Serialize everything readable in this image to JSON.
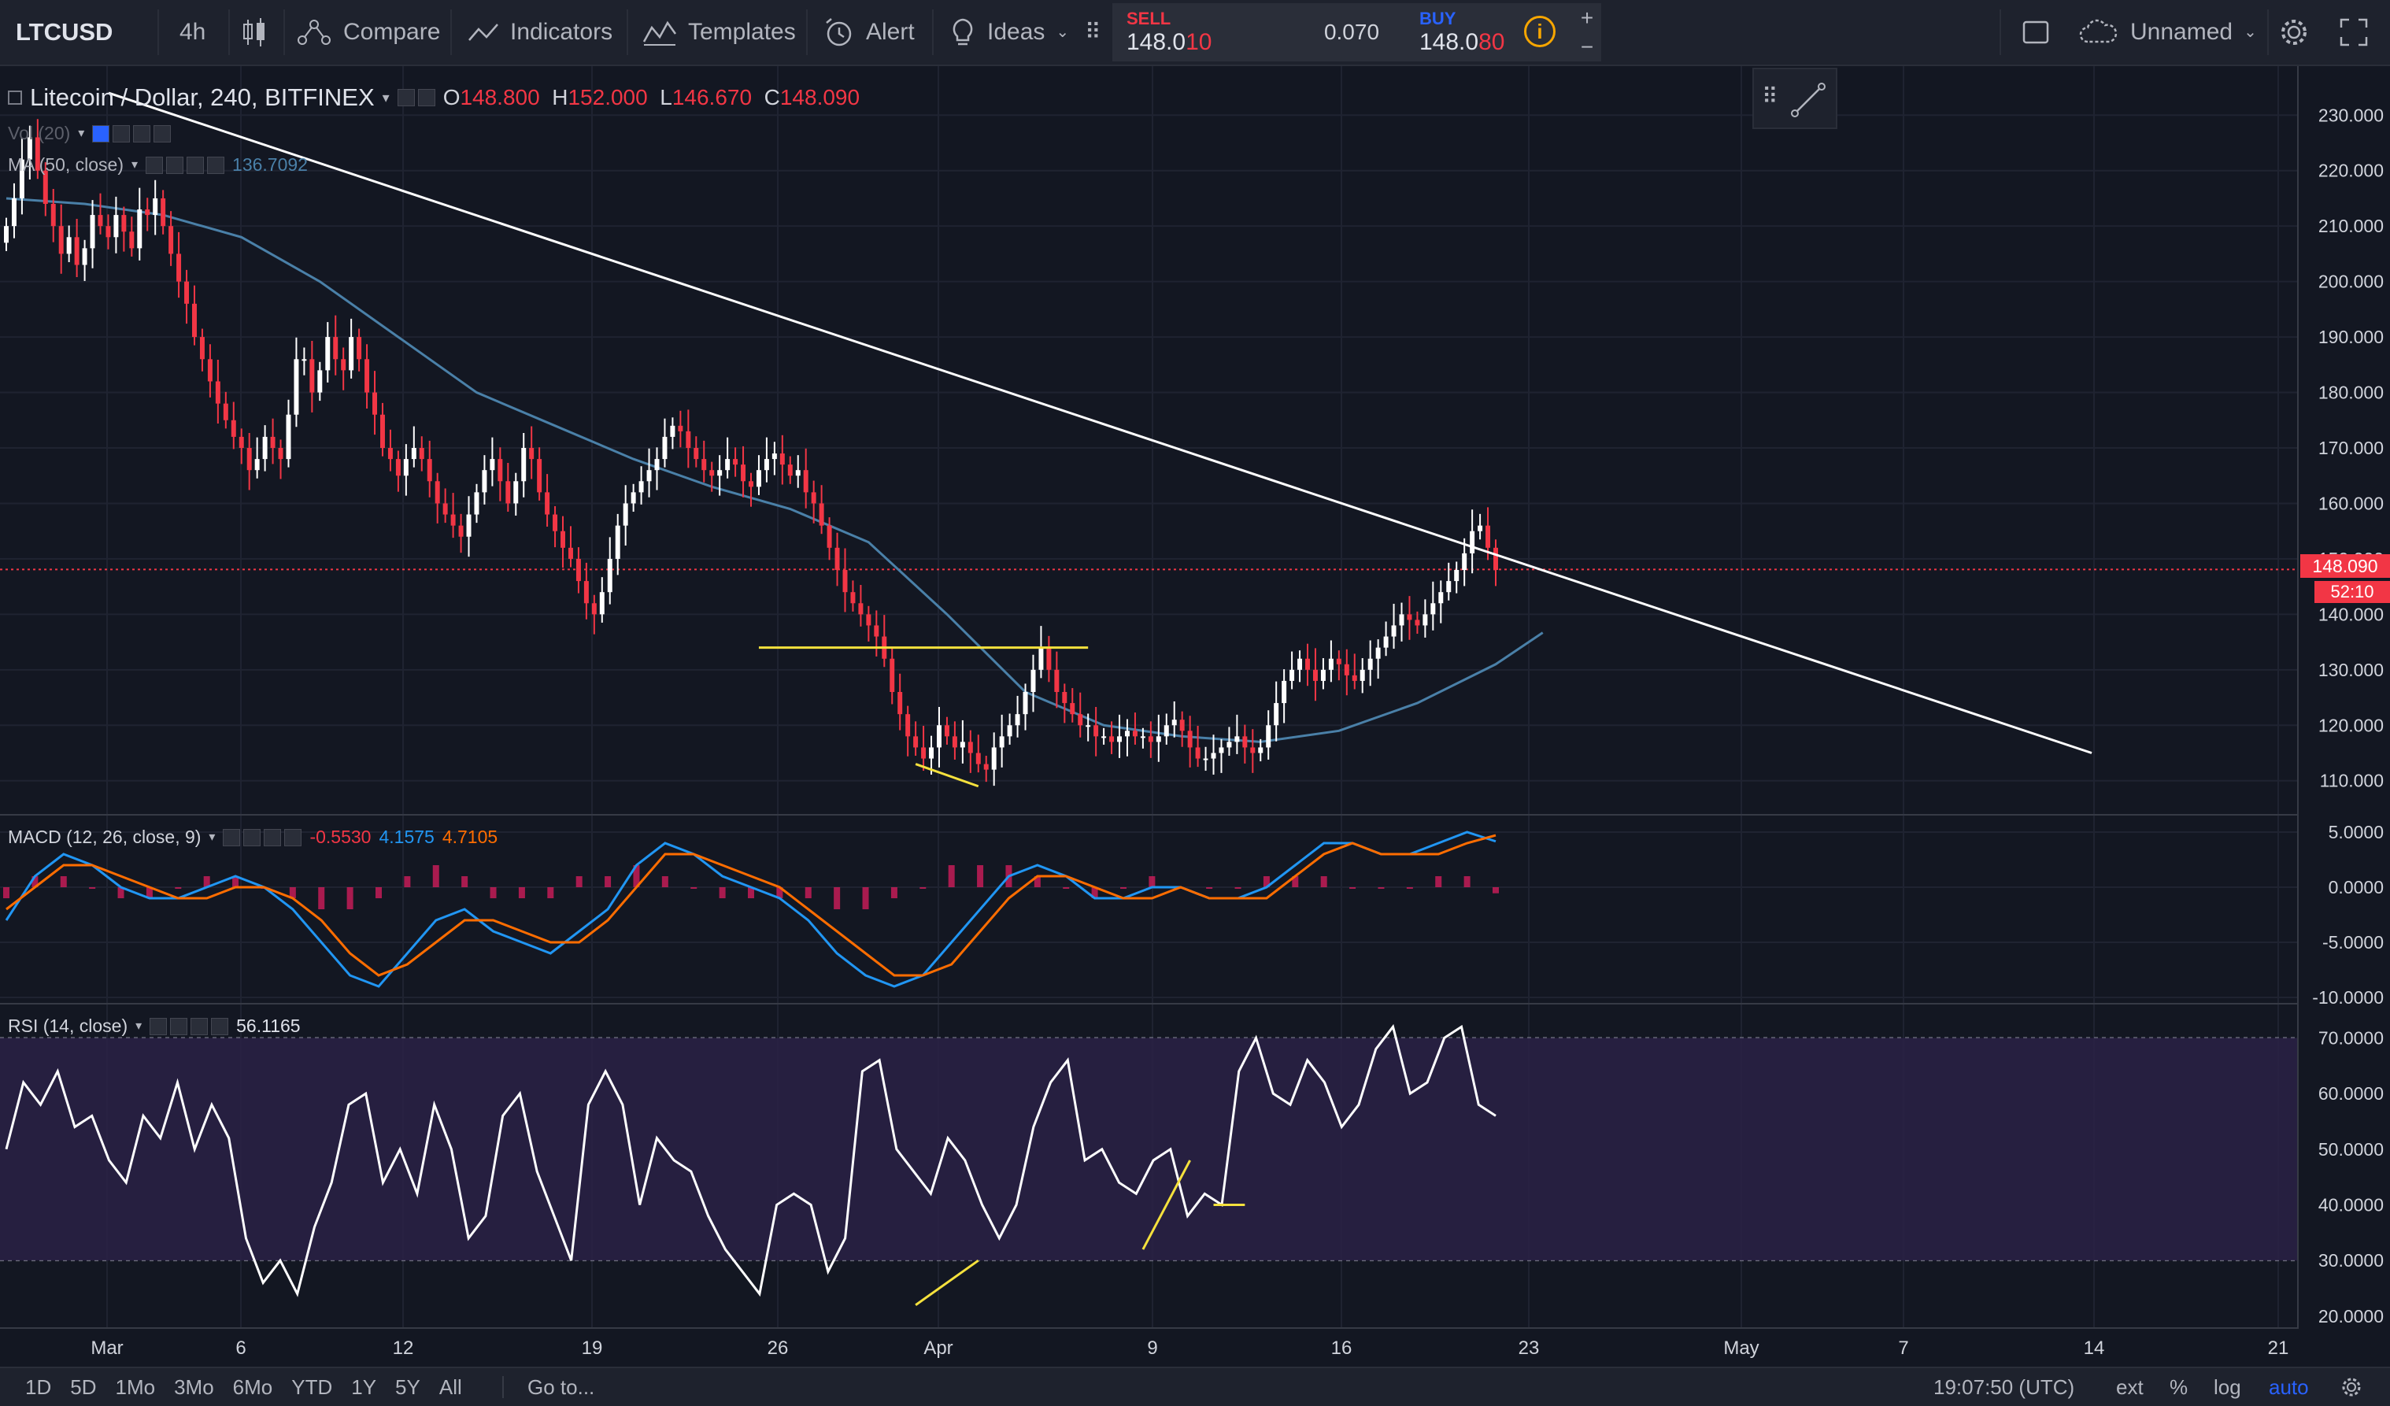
{
  "toolbar": {
    "symbol": "LTCUSD",
    "interval": "4h",
    "compare_label": "Compare",
    "indicators_label": "Indicators",
    "templates_label": "Templates",
    "alert_label": "Alert",
    "ideas_label": "Ideas",
    "sell_label": "SELL",
    "sell_price_main": "148.0",
    "sell_price_frac": "10",
    "spread": "0.070",
    "buy_label": "BUY",
    "buy_price_main": "148.0",
    "buy_price_frac": "80",
    "plus_label": "+",
    "minus_label": "−",
    "layout_name": "Unnamed"
  },
  "legend": {
    "title": "Litecoin / Dollar, 240, BITFINEX",
    "o_key": "O",
    "o_val": "148.800",
    "h_key": "H",
    "h_val": "152.000",
    "l_key": "L",
    "l_val": "146.670",
    "c_key": "C",
    "c_val": "148.090",
    "vol_label": "Vol (20)",
    "ma_label": "MA (50, close)",
    "ma_value": "136.7092",
    "macd_label": "MACD (12, 26, close, 9)",
    "macd_hist": "-0.5530",
    "macd_line": "4.1575",
    "macd_signal": "4.7105",
    "rsi_label": "RSI (14, close)",
    "rsi_value": "56.1165"
  },
  "price_marker": {
    "value": "148.090",
    "countdown": "52:10"
  },
  "bottom_bar": {
    "ranges": [
      "1D",
      "5D",
      "1Mo",
      "3Mo",
      "6Mo",
      "YTD",
      "1Y",
      "5Y",
      "All"
    ],
    "goto_label": "Go to...",
    "clock": "19:07:50 (UTC)",
    "ext_label": "ext",
    "percent_label": "%",
    "log_label": "log",
    "auto_label": "auto"
  },
  "colors": {
    "background": "#131722",
    "up_candle": "#ffffff",
    "down_candle": "#f23645",
    "ma_line": "#4a80a8",
    "macd_line": "#2196f3",
    "signal_line": "#ff6d00",
    "rsi_line": "#ffffff",
    "trend_line": "#ffffff",
    "annotation_line": "#f5e13d",
    "rsi_band": "#2a2145"
  },
  "chart_data": [
    {
      "type": "candlestick",
      "title": "Litecoin / Dollar, 240, BITFINEX",
      "x_ticks": [
        "Mar",
        "6",
        "12",
        "19",
        "26",
        "Apr",
        "9",
        "16",
        "23",
        "May",
        "7",
        "14",
        "21"
      ],
      "y_ticks": [
        "110.000",
        "120.000",
        "130.000",
        "140.000",
        "150.000",
        "160.000",
        "170.000",
        "180.000",
        "190.000",
        "200.000",
        "210.000",
        "220.000",
        "230.000"
      ],
      "ylim": [
        104,
        236
      ],
      "close_series": [
        210,
        215,
        222,
        226,
        220,
        214,
        210,
        205,
        208,
        203,
        206,
        212,
        210,
        208,
        212,
        209,
        206,
        213,
        212,
        215,
        210,
        205,
        200,
        196,
        190,
        186,
        182,
        178,
        175,
        172,
        170,
        166,
        168,
        172,
        170,
        168,
        176,
        186,
        186,
        180,
        184,
        190,
        186,
        184,
        190,
        186,
        180,
        176,
        170,
        168,
        165,
        168,
        170,
        168,
        164,
        160,
        158,
        156,
        154,
        158,
        162,
        166,
        168,
        164,
        160,
        164,
        170,
        168,
        162,
        158,
        155,
        152,
        150,
        146,
        142,
        140,
        144,
        150,
        156,
        160,
        162,
        164,
        166,
        168,
        172,
        174,
        173,
        170,
        168,
        166,
        165,
        166,
        168,
        167,
        164,
        163,
        166,
        168,
        169,
        167,
        165,
        166,
        162,
        160,
        156,
        152,
        148,
        144,
        142,
        140,
        138,
        136,
        132,
        126,
        122,
        118,
        116,
        114,
        116,
        120,
        118,
        116,
        117,
        115,
        113,
        112,
        116,
        118,
        120,
        122,
        126,
        130,
        134,
        130,
        126,
        124,
        122,
        120,
        120,
        118,
        118,
        117,
        118,
        119,
        118,
        118,
        117,
        118,
        120,
        121,
        119,
        116,
        114,
        114,
        115,
        116,
        117,
        118,
        116,
        115,
        116,
        120,
        124,
        128,
        130,
        132,
        130,
        128,
        130,
        132,
        131,
        129,
        128,
        130,
        132,
        134,
        136,
        138,
        140,
        139,
        138,
        140,
        142,
        144,
        146,
        148,
        151,
        155,
        156,
        152,
        148
      ],
      "ma50": [
        {
          "x": 0,
          "y": 215
        },
        {
          "x": 10,
          "y": 214
        },
        {
          "x": 20,
          "y": 212
        },
        {
          "x": 30,
          "y": 208
        },
        {
          "x": 40,
          "y": 200
        },
        {
          "x": 50,
          "y": 190
        },
        {
          "x": 60,
          "y": 180
        },
        {
          "x": 70,
          "y": 174
        },
        {
          "x": 80,
          "y": 168
        },
        {
          "x": 90,
          "y": 163
        },
        {
          "x": 100,
          "y": 159
        },
        {
          "x": 110,
          "y": 153
        },
        {
          "x": 120,
          "y": 140
        },
        {
          "x": 130,
          "y": 126
        },
        {
          "x": 140,
          "y": 120
        },
        {
          "x": 150,
          "y": 118
        },
        {
          "x": 160,
          "y": 117
        },
        {
          "x": 170,
          "y": 119
        },
        {
          "x": 180,
          "y": 124
        },
        {
          "x": 190,
          "y": 131
        },
        {
          "x": 196,
          "y": 136.7
        }
      ],
      "annotations": {
        "trend_line": {
          "x": [
            0,
            260
          ],
          "y": [
            234,
            115
          ]
        },
        "support_line": {
          "x": [
            96,
            138
          ],
          "y": [
            134,
            134
          ]
        },
        "divergence_line": {
          "x": [
            116,
            124
          ],
          "y": [
            113,
            109
          ]
        }
      },
      "last_price": 148.09,
      "ma_last": 136.7092
    },
    {
      "type": "line",
      "title": "MACD (12, 26, close, 9)",
      "y_ticks": [
        "5.0000",
        "0.0000",
        "-5.0000",
        "-10.0000"
      ],
      "ylim": [
        -10.5,
        6.5
      ],
      "series": [
        {
          "name": "MACD",
          "values": [
            -3,
            1,
            3,
            2,
            0,
            -1,
            -1,
            0,
            1,
            0,
            -2,
            -5,
            -8,
            -9,
            -6,
            -3,
            -2,
            -4,
            -5,
            -6,
            -4,
            -2,
            2,
            4,
            3,
            1,
            0,
            -1,
            -3,
            -6,
            -8,
            -9,
            -8,
            -5,
            -2,
            1,
            2,
            1,
            -1,
            -1,
            0,
            0,
            -1,
            -1,
            0,
            2,
            4,
            4,
            3,
            3,
            4,
            5,
            4.16
          ]
        },
        {
          "name": "Signal",
          "values": [
            -2,
            0,
            2,
            2,
            1,
            0,
            -1,
            -1,
            0,
            0,
            -1,
            -3,
            -6,
            -8,
            -7,
            -5,
            -3,
            -3,
            -4,
            -5,
            -5,
            -3,
            0,
            3,
            3,
            2,
            1,
            0,
            -2,
            -4,
            -6,
            -8,
            -8,
            -7,
            -4,
            -1,
            1,
            1,
            0,
            -1,
            -1,
            0,
            -1,
            -1,
            -1,
            1,
            3,
            4,
            3,
            3,
            3,
            4,
            4.71
          ]
        },
        {
          "name": "Histogram",
          "values": [
            -1,
            1,
            1,
            0,
            -1,
            -1,
            0,
            1,
            1,
            0,
            -1,
            -2,
            -2,
            -1,
            1,
            2,
            1,
            -1,
            -1,
            -1,
            1,
            1,
            2,
            1,
            0,
            -1,
            -1,
            -1,
            -1,
            -2,
            -2,
            -1,
            0,
            2,
            2,
            2,
            1,
            0,
            -1,
            0,
            1,
            0,
            0,
            0,
            1,
            1,
            1,
            0,
            0,
            0,
            1,
            1,
            -0.55
          ]
        }
      ]
    },
    {
      "type": "line",
      "title": "RSI (14, close)",
      "y_ticks": [
        "70.0000",
        "60.0000",
        "50.0000",
        "40.0000",
        "30.0000",
        "20.0000"
      ],
      "ylim": [
        18,
        76
      ],
      "bands": [
        30,
        70
      ],
      "series": [
        {
          "name": "RSI",
          "values": [
            50,
            62,
            58,
            64,
            54,
            56,
            48,
            44,
            56,
            52,
            62,
            50,
            58,
            52,
            34,
            26,
            30,
            24,
            36,
            44,
            58,
            60,
            44,
            50,
            42,
            58,
            50,
            34,
            38,
            56,
            60,
            46,
            38,
            30,
            58,
            64,
            58,
            40,
            52,
            48,
            46,
            38,
            32,
            28,
            24,
            40,
            42,
            40,
            28,
            34,
            64,
            66,
            50,
            46,
            42,
            52,
            48,
            40,
            34,
            40,
            54,
            62,
            66,
            48,
            50,
            44,
            42,
            48,
            50,
            38,
            42,
            40,
            64,
            70,
            60,
            58,
            66,
            62,
            54,
            58,
            68,
            72,
            60,
            62,
            70,
            72,
            58,
            56
          ]
        }
      ],
      "annotations": {
        "div1": {
          "x": [
            116,
            124
          ],
          "y": [
            22,
            30
          ]
        },
        "div2": {
          "x": [
            145,
            151
          ],
          "y": [
            32,
            48
          ]
        },
        "div3": {
          "x": [
            154,
            158
          ],
          "y": [
            40,
            40
          ]
        }
      }
    }
  ]
}
